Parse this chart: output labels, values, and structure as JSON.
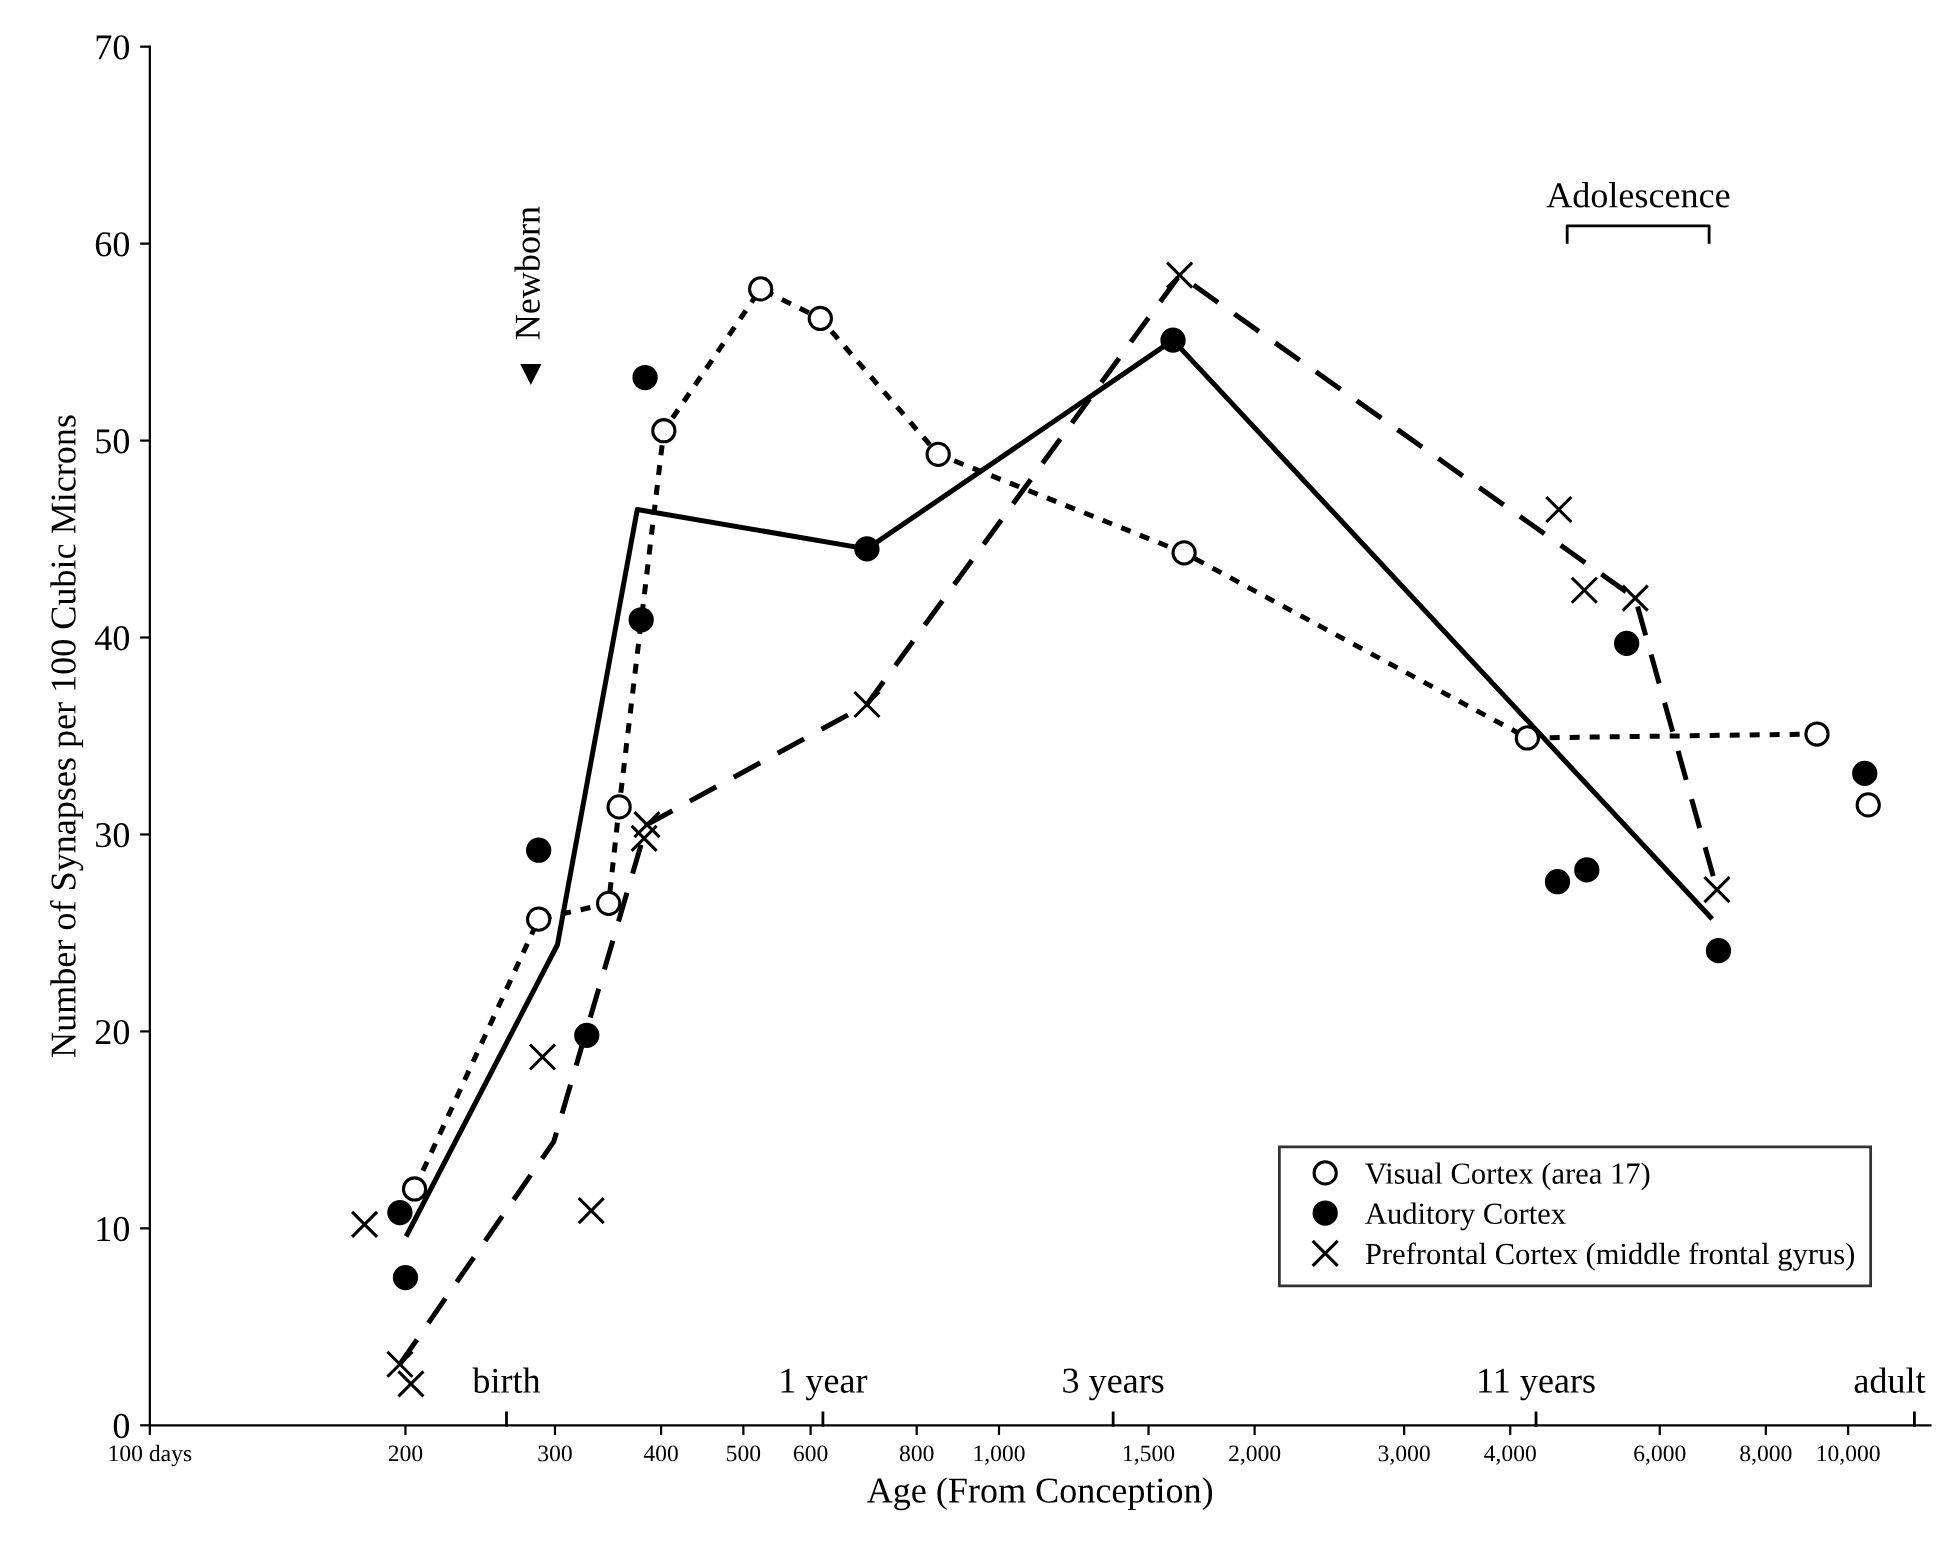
{
  "chart_data": {
    "type": "scatter",
    "xlabel": "Age (From Conception)",
    "ylabel": "Number of Synapses per 100 Cubic Microns",
    "log": "x",
    "xlim": [
      100,
      12500
    ],
    "ylim": [
      0,
      70
    ],
    "xticks": [
      {
        "value": 100,
        "label": "100 days"
      },
      200,
      300,
      400,
      500,
      600,
      800,
      {
        "value": 1000,
        "label": "1,000"
      },
      {
        "value": 1500,
        "label": "1,500"
      },
      {
        "value": 2000,
        "label": "2,000"
      },
      {
        "value": 3000,
        "label": "3,000"
      },
      {
        "value": 4000,
        "label": "4,000"
      },
      {
        "value": 6000,
        "label": "6,000"
      },
      {
        "value": 8000,
        "label": "8,000"
      },
      {
        "value": 10000,
        "label": "10,000"
      }
    ],
    "yticks": [
      0,
      10,
      20,
      30,
      40,
      50,
      60,
      70
    ],
    "grid": false,
    "legend": "bottom right",
    "series": [
      {
        "name": "Visual Cortex (area 17)",
        "marker": "circle",
        "color": "#ffffff",
        "x": [
          205,
          287,
          347,
          357,
          403,
          524,
          616,
          848,
          1652,
          4190,
          9190,
          10560
        ],
        "values": [
          12.0,
          25.7,
          26.5,
          31.4,
          50.5,
          57.7,
          56.2,
          49.3,
          44.3,
          34.9,
          35.1,
          31.5
        ]
      },
      {
        "name": "Auditory Cortex",
        "marker": "circle",
        "color": "#000000",
        "x": [
          197,
          200,
          287,
          327,
          383,
          379,
          699,
          1603,
          5485,
          4547,
          4923,
          10460,
          7036
        ],
        "values": [
          10.8,
          7.5,
          29.2,
          19.8,
          53.2,
          40.9,
          44.5,
          55.1,
          39.7,
          27.6,
          28.2,
          33.1,
          24.1
        ]
      },
      {
        "name": "Prefrontal Cortex (middle frontal gyrus)",
        "marker": "cross",
        "color": "#000000",
        "x": [
          179,
          197,
          203,
          290,
          331,
          382,
          385,
          699,
          1632,
          4563,
          4890,
          5614,
          7007
        ],
        "values": [
          10.2,
          3.1,
          2.1,
          18.7,
          10.9,
          29.8,
          30.5,
          36.6,
          58.4,
          46.5,
          42.4,
          42.0,
          27.2
        ]
      },
      {
        "type": "line",
        "line_style": "dotted",
        "marker": "none",
        "color": "#000000",
        "x": [
          205,
          287,
          347,
          357,
          403,
          524,
          616,
          848,
          1652,
          4190,
          9190
        ],
        "values": [
          12.0,
          25.7,
          26.5,
          31.4,
          50.5,
          57.7,
          56.2,
          49.3,
          44.3,
          34.9,
          35.1
        ]
      },
      {
        "type": "line",
        "line_style": "solid",
        "marker": "none",
        "color": "#000000",
        "x": [
          201,
          302,
          375,
          699,
          1603,
          6885
        ],
        "values": [
          9.7,
          24.4,
          46.5,
          44.5,
          55.1,
          25.8
        ]
      },
      {
        "type": "line",
        "line_style": "dashed",
        "marker": "none",
        "color": "#000000",
        "x": [
          197,
          299,
          385,
          699,
          1632,
          5614,
          7007
        ],
        "values": [
          3.1,
          14.4,
          30.5,
          36.6,
          58.4,
          42.0,
          27.2
        ]
      }
    ],
    "annotations": [
      {
        "text": "Newborn",
        "x": 281,
        "y": 53.4
      },
      "Adolescence",
      "birth",
      "1 year",
      "3 years",
      "11 years",
      "adult"
    ]
  }
}
